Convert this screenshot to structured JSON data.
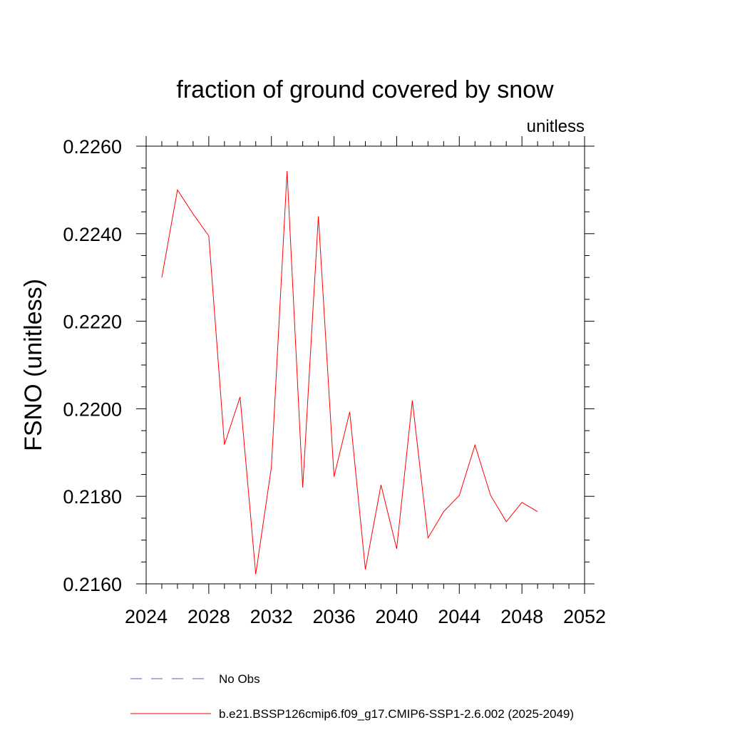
{
  "chart_data": {
    "type": "line",
    "title": "fraction of ground covered by snow",
    "units": "unitless",
    "ylabel": "FSNO  (unitless)",
    "xlabel": "",
    "xlim": [
      2024,
      2052
    ],
    "ylim": [
      0.216,
      0.226
    ],
    "xticks": [
      {
        "value": 2024,
        "label": "2024"
      },
      {
        "value": 2028,
        "label": "2028"
      },
      {
        "value": 2032,
        "label": "2032"
      },
      {
        "value": 2036,
        "label": "2036"
      },
      {
        "value": 2040,
        "label": "2040"
      },
      {
        "value": 2044,
        "label": "2044"
      },
      {
        "value": 2048,
        "label": "2048"
      },
      {
        "value": 2052,
        "label": "2052"
      }
    ],
    "yticks": [
      {
        "value": 0.216,
        "label": "0.2160"
      },
      {
        "value": 0.218,
        "label": "0.2180"
      },
      {
        "value": 0.22,
        "label": "0.2200"
      },
      {
        "value": 0.222,
        "label": "0.2220"
      },
      {
        "value": 0.224,
        "label": "0.2240"
      },
      {
        "value": 0.226,
        "label": "0.2260"
      }
    ],
    "x_minor_step": 1,
    "y_minor_step": 0.0005,
    "grid": false,
    "legend_position": "bottom",
    "series": [
      {
        "name": "No Obs",
        "color": "#5b5bb5",
        "style": "dashed",
        "x": [],
        "values": []
      },
      {
        "name": "b.e21.BSSP126cmip6.f09_g17.CMIP6-SSP1-2.6.002 (2025-2049)",
        "color": "#ff0000",
        "style": "solid",
        "x": [
          2025,
          2026,
          2027,
          2028,
          2029,
          2030,
          2031,
          2032,
          2033,
          2034,
          2035,
          2036,
          2037,
          2038,
          2039,
          2040,
          2041,
          2042,
          2043,
          2044,
          2045,
          2046,
          2047,
          2048,
          2049
        ],
        "values": [
          0.223,
          0.225,
          0.22445,
          0.22395,
          0.21918,
          0.22027,
          0.21622,
          0.21867,
          0.22543,
          0.2182,
          0.2244,
          0.21845,
          0.21993,
          0.21633,
          0.21826,
          0.2168,
          0.22019,
          0.21705,
          0.21765,
          0.21802,
          0.21917,
          0.21802,
          0.21742,
          0.21786,
          0.21765
        ]
      }
    ]
  }
}
